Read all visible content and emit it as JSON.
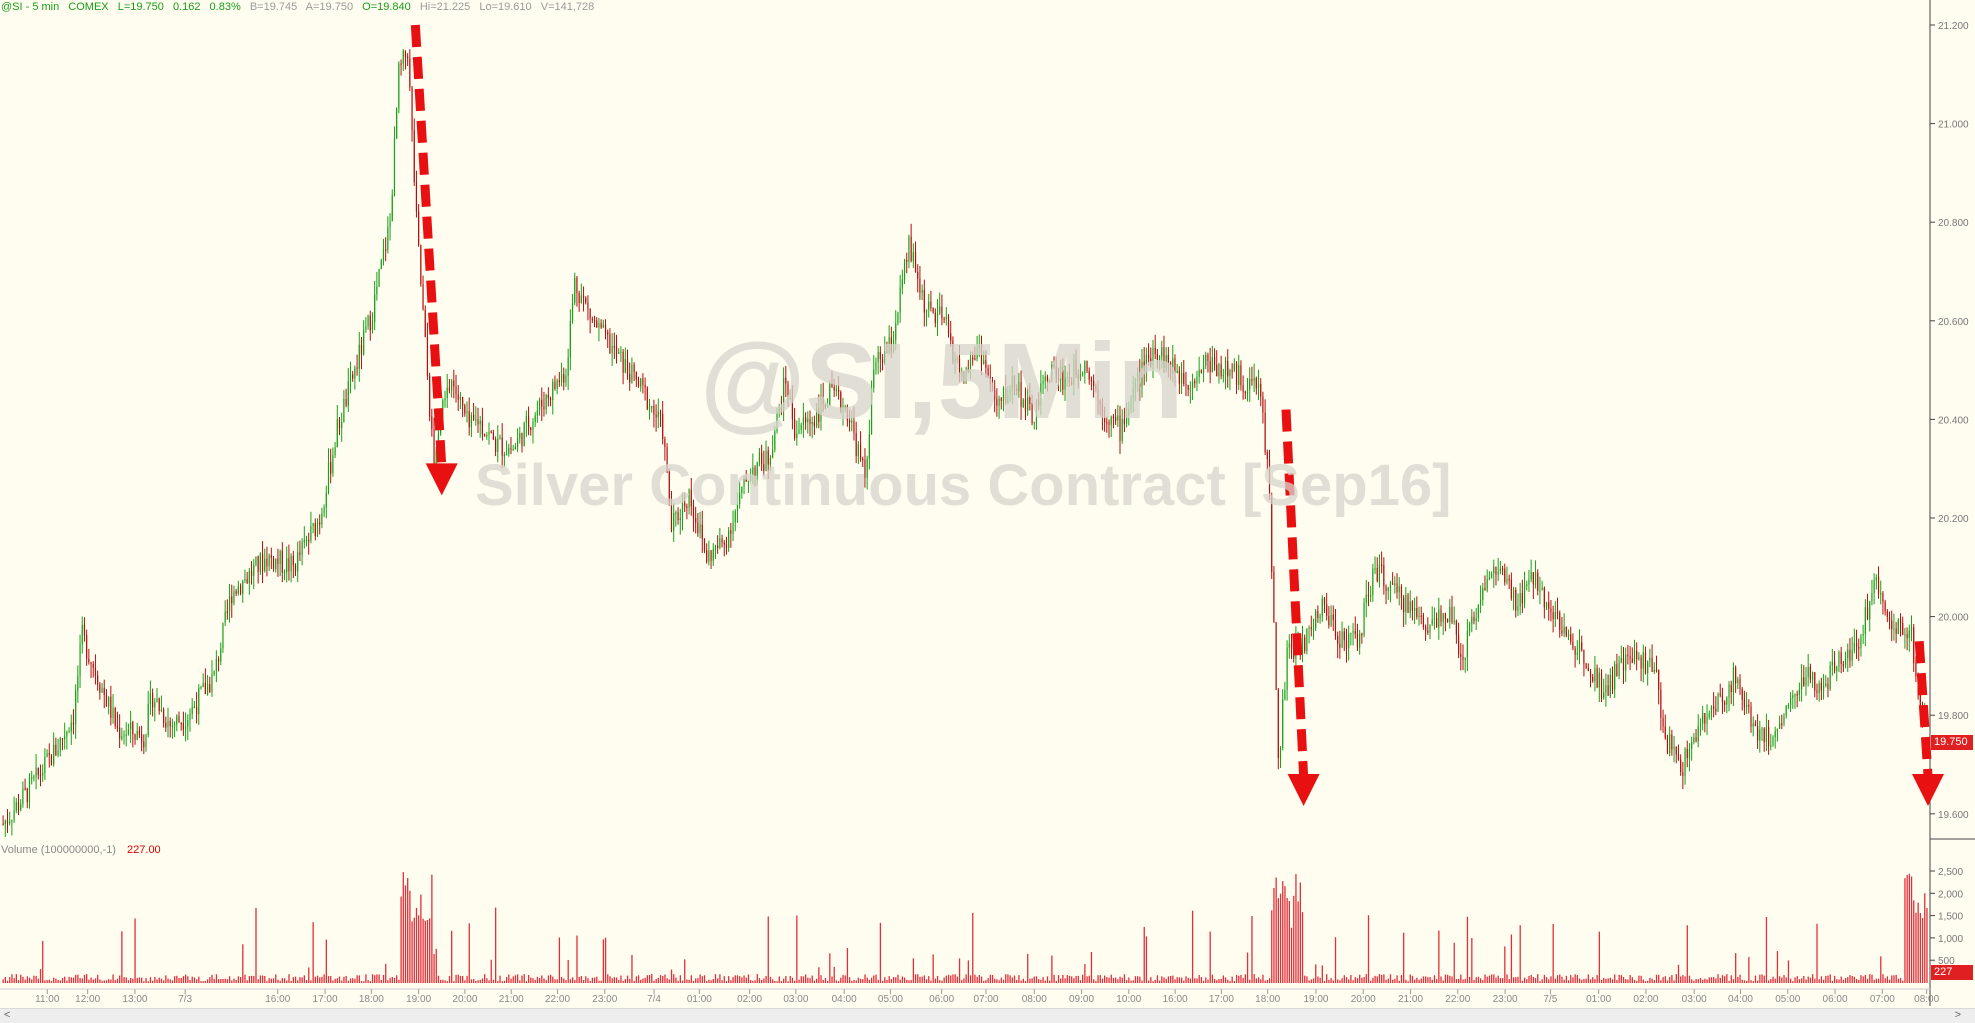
{
  "header": {
    "symbol": "@SI - 5 min",
    "exchange": "COMEX",
    "last": "L=19.750",
    "change": "0.162",
    "change_pct": "0.83%",
    "bid": "B=19.745",
    "ask": "A=19.750",
    "open": "O=19.840",
    "high": "Hi=21.225",
    "low": "Lo=19.610",
    "volume": "V=141,728"
  },
  "volume_panel": {
    "label": "Volume (100000000,-1)",
    "value": "227.00"
  },
  "watermark": {
    "line1": "@SI,5Min",
    "line2": "Silver Continuous Contract [Sep16]"
  },
  "price_badge": "19.750",
  "volume_badge": "227",
  "colors": {
    "up": "#1aa01a",
    "down": "#b01010",
    "volume": "#e0303a",
    "arrow": "#e81010",
    "background": "#fffdf0"
  },
  "chart_data": {
    "type": "candlestick",
    "y_ticks": [
      "21.200",
      "21.000",
      "20.800",
      "20.600",
      "20.400",
      "20.200",
      "20.000",
      "19.800",
      "19.600"
    ],
    "ylim": [
      19.55,
      21.25
    ],
    "vol_ticks": [
      "2,500",
      "2,000",
      "1,500",
      "1,000",
      "500"
    ],
    "x_ticks": [
      "11:00",
      "12:00",
      "13:00",
      "7/3",
      "16:00",
      "17:00",
      "18:00",
      "19:00",
      "20:00",
      "21:00",
      "22:00",
      "23:00",
      "7/4",
      "01:00",
      "02:00",
      "03:00",
      "04:00",
      "05:00",
      "06:00",
      "07:00",
      "08:00",
      "09:00",
      "10:00",
      "16:00",
      "17:00",
      "18:00",
      "19:00",
      "20:00",
      "21:00",
      "22:00",
      "23:00",
      "7/5",
      "01:00",
      "02:00",
      "03:00",
      "04:00",
      "05:00",
      "06:00",
      "07:00",
      "08:00"
    ],
    "price_path": [
      [
        0,
        19.58
      ],
      [
        3,
        19.65
      ],
      [
        6,
        19.73
      ],
      [
        8,
        19.8
      ],
      [
        9,
        19.96
      ],
      [
        12,
        19.82
      ],
      [
        13,
        19.77
      ],
      [
        16,
        19.76
      ],
      [
        17,
        19.84
      ],
      [
        19,
        19.78
      ],
      [
        21,
        19.8
      ],
      [
        24,
        19.88
      ],
      [
        26,
        20.05
      ],
      [
        30,
        20.12
      ],
      [
        33,
        20.1
      ],
      [
        36,
        20.2
      ],
      [
        38,
        20.38
      ],
      [
        40,
        20.5
      ],
      [
        42,
        20.62
      ],
      [
        44,
        20.8
      ],
      [
        45,
        21.1
      ],
      [
        46,
        21.15
      ],
      [
        47,
        20.8
      ],
      [
        48,
        20.55
      ],
      [
        49,
        20.3
      ],
      [
        50,
        20.42
      ],
      [
        51,
        20.48
      ],
      [
        53,
        20.38
      ],
      [
        54,
        20.4
      ],
      [
        56,
        20.35
      ],
      [
        58,
        20.34
      ],
      [
        60,
        20.4
      ],
      [
        62,
        20.45
      ],
      [
        64,
        20.5
      ],
      [
        65,
        20.68
      ],
      [
        67,
        20.6
      ],
      [
        69,
        20.55
      ],
      [
        71,
        20.5
      ],
      [
        73,
        20.45
      ],
      [
        75,
        20.38
      ],
      [
        76,
        20.18
      ],
      [
        78,
        20.25
      ],
      [
        80,
        20.12
      ],
      [
        82,
        20.15
      ],
      [
        85,
        20.3
      ],
      [
        87,
        20.32
      ],
      [
        89,
        20.48
      ],
      [
        90,
        20.38
      ],
      [
        92,
        20.4
      ],
      [
        94,
        20.45
      ],
      [
        96,
        20.42
      ],
      [
        98,
        20.28
      ],
      [
        99,
        20.5
      ],
      [
        101,
        20.55
      ],
      [
        103,
        20.75
      ],
      [
        105,
        20.62
      ],
      [
        107,
        20.6
      ],
      [
        109,
        20.48
      ],
      [
        111,
        20.55
      ],
      [
        113,
        20.42
      ],
      [
        115,
        20.48
      ],
      [
        117,
        20.4
      ],
      [
        119,
        20.5
      ],
      [
        121,
        20.48
      ],
      [
        123,
        20.52
      ],
      [
        125,
        20.42
      ],
      [
        127,
        20.38
      ],
      [
        129,
        20.48
      ],
      [
        131,
        20.55
      ],
      [
        133,
        20.5
      ],
      [
        135,
        20.48
      ],
      [
        137,
        20.52
      ],
      [
        139,
        20.5
      ],
      [
        141,
        20.48
      ],
      [
        143,
        20.46
      ],
      [
        144,
        20.25
      ],
      [
        145,
        19.7
      ],
      [
        146,
        19.92
      ],
      [
        148,
        19.95
      ],
      [
        150,
        20.02
      ],
      [
        152,
        19.96
      ],
      [
        154,
        19.95
      ],
      [
        156,
        20.1
      ],
      [
        158,
        20.05
      ],
      [
        160,
        20.02
      ],
      [
        162,
        19.98
      ],
      [
        164,
        20.02
      ],
      [
        166,
        19.92
      ],
      [
        168,
        20.05
      ],
      [
        170,
        20.1
      ],
      [
        172,
        20.02
      ],
      [
        174,
        20.08
      ],
      [
        176,
        20.02
      ],
      [
        178,
        19.95
      ],
      [
        180,
        19.92
      ],
      [
        182,
        19.85
      ],
      [
        184,
        19.9
      ],
      [
        186,
        19.92
      ],
      [
        188,
        19.88
      ],
      [
        189,
        19.75
      ],
      [
        191,
        19.7
      ],
      [
        193,
        19.78
      ],
      [
        195,
        19.82
      ],
      [
        197,
        19.88
      ],
      [
        199,
        19.78
      ],
      [
        201,
        19.75
      ],
      [
        203,
        19.82
      ],
      [
        205,
        19.88
      ],
      [
        207,
        19.85
      ],
      [
        209,
        19.92
      ],
      [
        211,
        19.95
      ],
      [
        213,
        20.08
      ],
      [
        215,
        19.98
      ],
      [
        217,
        19.96
      ],
      [
        218,
        19.82
      ],
      [
        219,
        19.75
      ]
    ],
    "arrows": [
      {
        "from": [
          47,
          21.2
        ],
        "to": [
          50,
          20.25
        ]
      },
      {
        "from": [
          146,
          20.42
        ],
        "to": [
          148,
          19.62
        ]
      },
      {
        "from": [
          218,
          19.95
        ],
        "to": [
          219,
          19.62
        ]
      }
    ]
  }
}
